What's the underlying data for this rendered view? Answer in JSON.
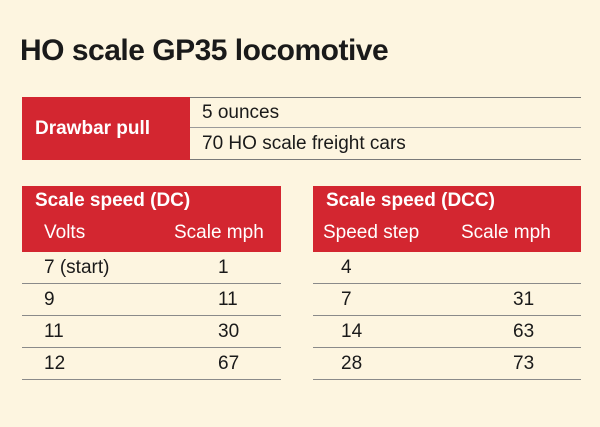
{
  "title": "HO scale GP35 locomotive",
  "drawbar": {
    "label": "Drawbar pull",
    "rows": [
      "5 ounces",
      "70 HO scale freight cars"
    ]
  },
  "dc": {
    "title": "Scale speed (DC)",
    "col1": "Volts",
    "col2": "Scale mph",
    "rows": [
      {
        "a": "7 (start)",
        "b": "1"
      },
      {
        "a": "9",
        "b": "11"
      },
      {
        "a": "11",
        "b": "30"
      },
      {
        "a": "12",
        "b": "67"
      }
    ]
  },
  "dcc": {
    "title": "Scale speed (DCC)",
    "col1": "Speed step",
    "col2": "Scale mph",
    "rows": [
      {
        "a": "4",
        "b": ""
      },
      {
        "a": "7",
        "b": "31"
      },
      {
        "a": "14",
        "b": "63"
      },
      {
        "a": "28",
        "b": "73"
      }
    ]
  },
  "colors": {
    "header_red": "#d32630",
    "background": "#fdf5e0"
  }
}
